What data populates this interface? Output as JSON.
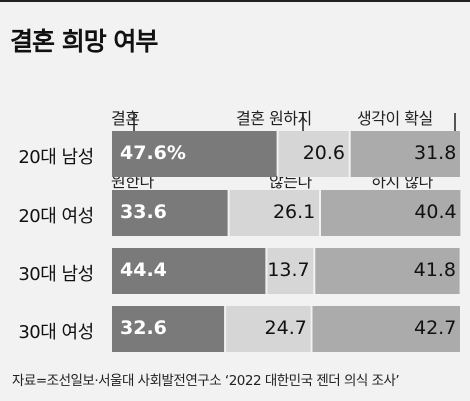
{
  "title": "결혼 희망 여부",
  "source": "자료=조선일보·서울대 사회발전연구소 ‘2022 대한민국 젠더 의식 조사’",
  "chart_data": {
    "type": "bar",
    "stacked": true,
    "orientation": "horizontal",
    "categories": [
      "20대 남성",
      "20대 여성",
      "30대 남성",
      "30대 여성"
    ],
    "series": [
      {
        "name": "결혼 원한다",
        "values": [
          47.6,
          33.6,
          44.4,
          32.6
        ],
        "labels": [
          "47.6%",
          "33.6",
          "44.4",
          "32.6"
        ],
        "color": "#7a7a7a"
      },
      {
        "name": "결혼 원하지 않는다",
        "values": [
          20.6,
          26.1,
          13.7,
          24.7
        ],
        "labels": [
          "20.6",
          "26.1",
          "13.7",
          "24.7"
        ],
        "color": "#d6d6d6"
      },
      {
        "name": "생각이 확실하지 않다",
        "values": [
          31.8,
          40.4,
          41.8,
          42.7
        ],
        "labels": [
          "31.8",
          "40.4",
          "41.8",
          "42.7"
        ],
        "color": "#ababab"
      }
    ],
    "legend_lines": [
      [
        "결혼",
        "원한다"
      ],
      [
        "결혼 원하지",
        "않는다"
      ],
      [
        "생각이 확실",
        "하지 않다"
      ]
    ]
  }
}
